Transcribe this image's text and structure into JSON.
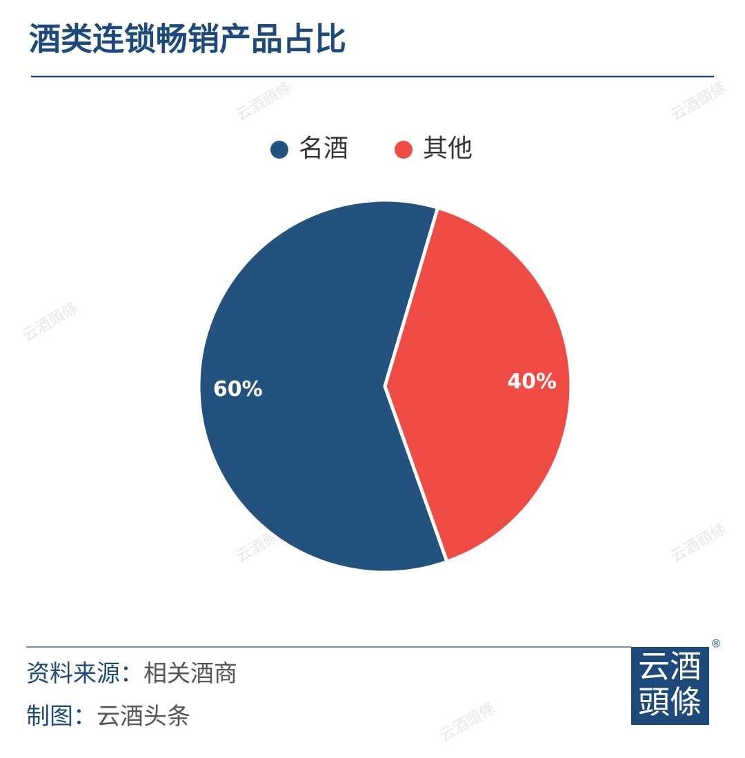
{
  "chart_data": {
    "type": "pie",
    "title": "酒类连锁畅销产品占比",
    "categories": [
      "名酒",
      "其他"
    ],
    "values": [
      60,
      40
    ],
    "value_labels": [
      "60%",
      "40%"
    ],
    "colors": [
      "#23527f",
      "#ee4c45"
    ]
  },
  "footer": {
    "source_label": "资料来源：",
    "source": "相关酒商",
    "credit_label": "制图：",
    "credit": "云酒头条"
  },
  "logo": {
    "line1": "云酒",
    "line2": "頭條",
    "mark": "®"
  },
  "watermark": "云酒頭條"
}
